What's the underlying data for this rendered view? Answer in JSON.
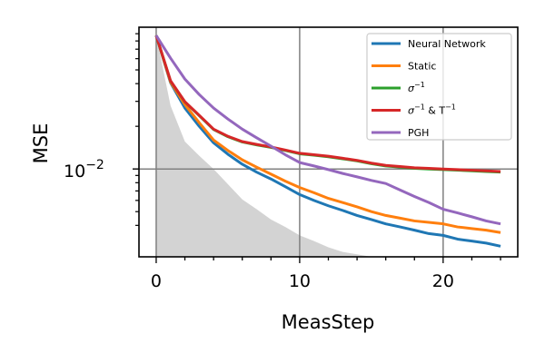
{
  "chart_data": {
    "type": "line",
    "xlabel": "MeasStep",
    "ylabel": "MSE",
    "yscale": "log",
    "xlim": [
      -1.2,
      25.2
    ],
    "ylim": [
      0.0024,
      0.1
    ],
    "grid": true,
    "legend_placement": "top-right",
    "xticks": [
      0,
      10,
      20
    ],
    "xtick_labels": [
      "0",
      "10",
      "20"
    ],
    "yticks": [
      0.01
    ],
    "ytick_labels": [
      {
        "base": "10",
        "exp": "−2"
      }
    ],
    "x": [
      0,
      1,
      2,
      3,
      4,
      5,
      6,
      7,
      8,
      9,
      10,
      11,
      12,
      13,
      14,
      15,
      16,
      17,
      18,
      19,
      20,
      21,
      22,
      23,
      24
    ],
    "series": [
      {
        "name": "Neural Network",
        "color": "#1f77b4",
        "values": [
          0.0875,
          0.0406,
          0.0269,
          0.02,
          0.0153,
          0.0127,
          0.0108,
          0.0095,
          0.0085,
          0.0075,
          0.0066,
          0.006,
          0.0055,
          0.0051,
          0.0047,
          0.0044,
          0.0041,
          0.0039,
          0.0037,
          0.0035,
          0.0034,
          0.0032,
          0.0031,
          0.003,
          0.00285
        ]
      },
      {
        "name": "Static",
        "color": "#ff7f0e",
        "values": [
          0.0875,
          0.041,
          0.0285,
          0.0212,
          0.016,
          0.0135,
          0.0116,
          0.0103,
          0.0092,
          0.0082,
          0.0074,
          0.0068,
          0.0062,
          0.0058,
          0.0054,
          0.005,
          0.0047,
          0.0045,
          0.0043,
          0.0042,
          0.0041,
          0.0039,
          0.0038,
          0.0037,
          0.00356
        ]
      },
      {
        "name": "σ⁻¹",
        "legend_base": "σ",
        "legend_sup": "−1",
        "color": "#2ca02c",
        "values": [
          0.0875,
          0.0417,
          0.0297,
          0.0238,
          0.019,
          0.0169,
          0.0155,
          0.0148,
          0.0142,
          0.0135,
          0.0128,
          0.0125,
          0.0122,
          0.0118,
          0.0114,
          0.0109,
          0.0105,
          0.0103,
          0.0101,
          0.01,
          0.0099,
          0.0098,
          0.0097,
          0.0096,
          0.0095
        ]
      },
      {
        "name": "σ⁻¹ & T⁻¹",
        "legend_base": "σ",
        "legend_sup": "−1",
        "legend_mid": " & T",
        "legend_sup2": "−1",
        "color": "#d62728",
        "values": [
          0.0875,
          0.0419,
          0.0298,
          0.0239,
          0.0191,
          0.017,
          0.0156,
          0.0149,
          0.0143,
          0.0136,
          0.0129,
          0.0126,
          0.0123,
          0.0119,
          0.0115,
          0.011,
          0.0106,
          0.0104,
          0.0102,
          0.0101,
          0.01,
          0.0099,
          0.0098,
          0.0097,
          0.0096
        ]
      },
      {
        "name": "PGH",
        "color": "#9467bd",
        "values": [
          0.0875,
          0.0605,
          0.0431,
          0.0335,
          0.0269,
          0.0225,
          0.0191,
          0.0166,
          0.0145,
          0.0126,
          0.0111,
          0.0105,
          0.0099,
          0.0093,
          0.0088,
          0.0083,
          0.0079,
          0.0071,
          0.0064,
          0.0058,
          0.0052,
          0.0049,
          0.0046,
          0.0043,
          0.0041
        ]
      }
    ],
    "shaded_area": {
      "color": "#d3d3d3",
      "x": [
        0,
        1,
        2,
        3,
        4,
        5,
        6,
        7,
        8,
        9,
        10,
        11,
        12,
        13,
        14,
        15,
        16
      ],
      "values": [
        0.0875,
        0.028,
        0.0156,
        0.0124,
        0.01,
        0.0078,
        0.0061,
        0.0052,
        0.0044,
        0.0039,
        0.0034,
        0.0031,
        0.0028,
        0.0026,
        0.0025,
        0.0024,
        0.0023
      ]
    }
  }
}
